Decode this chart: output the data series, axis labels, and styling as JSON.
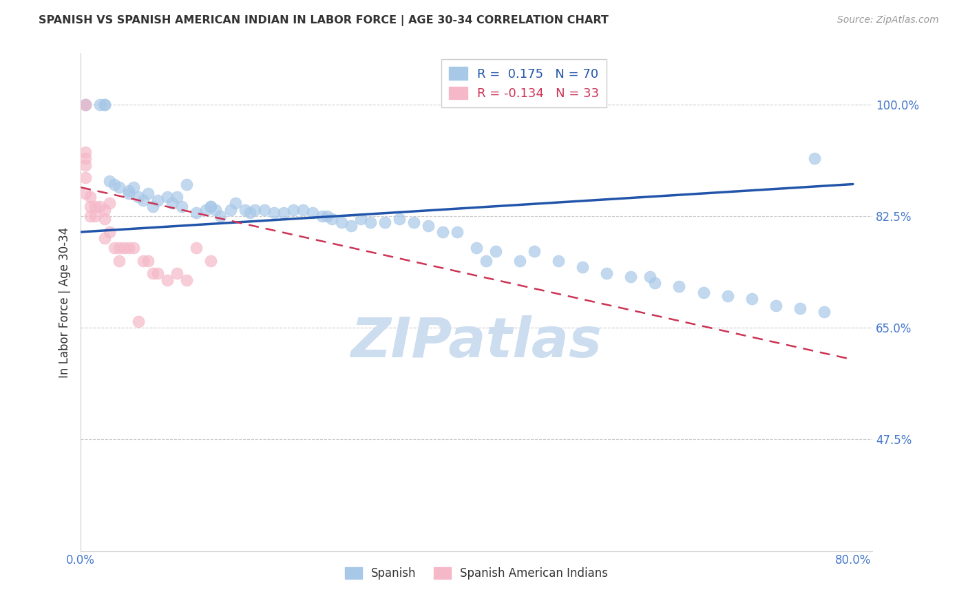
{
  "title": "SPANISH VS SPANISH AMERICAN INDIAN IN LABOR FORCE | AGE 30-34 CORRELATION CHART",
  "source": "Source: ZipAtlas.com",
  "ylabel": "In Labor Force | Age 30-34",
  "ytick_labels": [
    "100.0%",
    "82.5%",
    "65.0%",
    "47.5%"
  ],
  "ytick_values": [
    1.0,
    0.825,
    0.65,
    0.475
  ],
  "xlim": [
    0.0,
    0.82
  ],
  "ylim": [
    0.3,
    1.08
  ],
  "watermark": "ZIPatlas",
  "legend_r_blue": "0.175",
  "legend_n_blue": "70",
  "legend_r_pink": "-0.134",
  "legend_n_pink": "33",
  "blue_scatter_x": [
    0.005,
    0.005,
    0.02,
    0.025,
    0.025,
    0.03,
    0.035,
    0.04,
    0.05,
    0.05,
    0.055,
    0.06,
    0.065,
    0.07,
    0.075,
    0.08,
    0.09,
    0.095,
    0.1,
    0.105,
    0.11,
    0.12,
    0.13,
    0.135,
    0.14,
    0.145,
    0.155,
    0.16,
    0.17,
    0.175,
    0.18,
    0.19,
    0.2,
    0.21,
    0.22,
    0.23,
    0.24,
    0.25,
    0.26,
    0.27,
    0.28,
    0.29,
    0.3,
    0.315,
    0.33,
    0.345,
    0.36,
    0.375,
    0.39,
    0.41,
    0.43,
    0.455,
    0.47,
    0.495,
    0.52,
    0.545,
    0.57,
    0.595,
    0.62,
    0.645,
    0.67,
    0.695,
    0.72,
    0.745,
    0.77,
    0.59,
    0.42,
    0.255,
    0.135,
    0.76
  ],
  "blue_scatter_y": [
    1.0,
    1.0,
    1.0,
    1.0,
    1.0,
    0.88,
    0.875,
    0.87,
    0.865,
    0.86,
    0.87,
    0.855,
    0.85,
    0.86,
    0.84,
    0.85,
    0.855,
    0.845,
    0.855,
    0.84,
    0.875,
    0.83,
    0.835,
    0.84,
    0.835,
    0.825,
    0.835,
    0.845,
    0.835,
    0.83,
    0.835,
    0.835,
    0.83,
    0.83,
    0.835,
    0.835,
    0.83,
    0.825,
    0.82,
    0.815,
    0.81,
    0.82,
    0.815,
    0.815,
    0.82,
    0.815,
    0.81,
    0.8,
    0.8,
    0.775,
    0.77,
    0.755,
    0.77,
    0.755,
    0.745,
    0.735,
    0.73,
    0.72,
    0.715,
    0.705,
    0.7,
    0.695,
    0.685,
    0.68,
    0.675,
    0.73,
    0.755,
    0.825,
    0.84,
    0.915
  ],
  "pink_scatter_x": [
    0.005,
    0.005,
    0.005,
    0.005,
    0.005,
    0.005,
    0.01,
    0.01,
    0.01,
    0.015,
    0.015,
    0.02,
    0.025,
    0.025,
    0.025,
    0.03,
    0.03,
    0.035,
    0.04,
    0.04,
    0.045,
    0.05,
    0.055,
    0.06,
    0.065,
    0.07,
    0.075,
    0.08,
    0.09,
    0.1,
    0.11,
    0.12,
    0.135
  ],
  "pink_scatter_y": [
    1.0,
    0.925,
    0.915,
    0.905,
    0.885,
    0.86,
    0.855,
    0.84,
    0.825,
    0.84,
    0.825,
    0.84,
    0.835,
    0.82,
    0.79,
    0.845,
    0.8,
    0.775,
    0.775,
    0.755,
    0.775,
    0.775,
    0.775,
    0.66,
    0.755,
    0.755,
    0.735,
    0.735,
    0.725,
    0.735,
    0.725,
    0.775,
    0.755
  ],
  "blue_line_x": [
    0.0,
    0.8
  ],
  "blue_line_y": [
    0.8,
    0.875
  ],
  "pink_line_x": [
    0.0,
    0.8
  ],
  "pink_line_y": [
    0.87,
    0.6
  ],
  "title_color": "#333333",
  "blue_color": "#a8c8e8",
  "pink_color": "#f5b8c8",
  "blue_line_color": "#2255aa",
  "pink_line_color": "#cc3355",
  "axis_color": "#4477cc",
  "ytick_color": "#4477cc",
  "grid_color": "#cccccc",
  "watermark_color": "#ccddf0",
  "source_color": "#999999"
}
